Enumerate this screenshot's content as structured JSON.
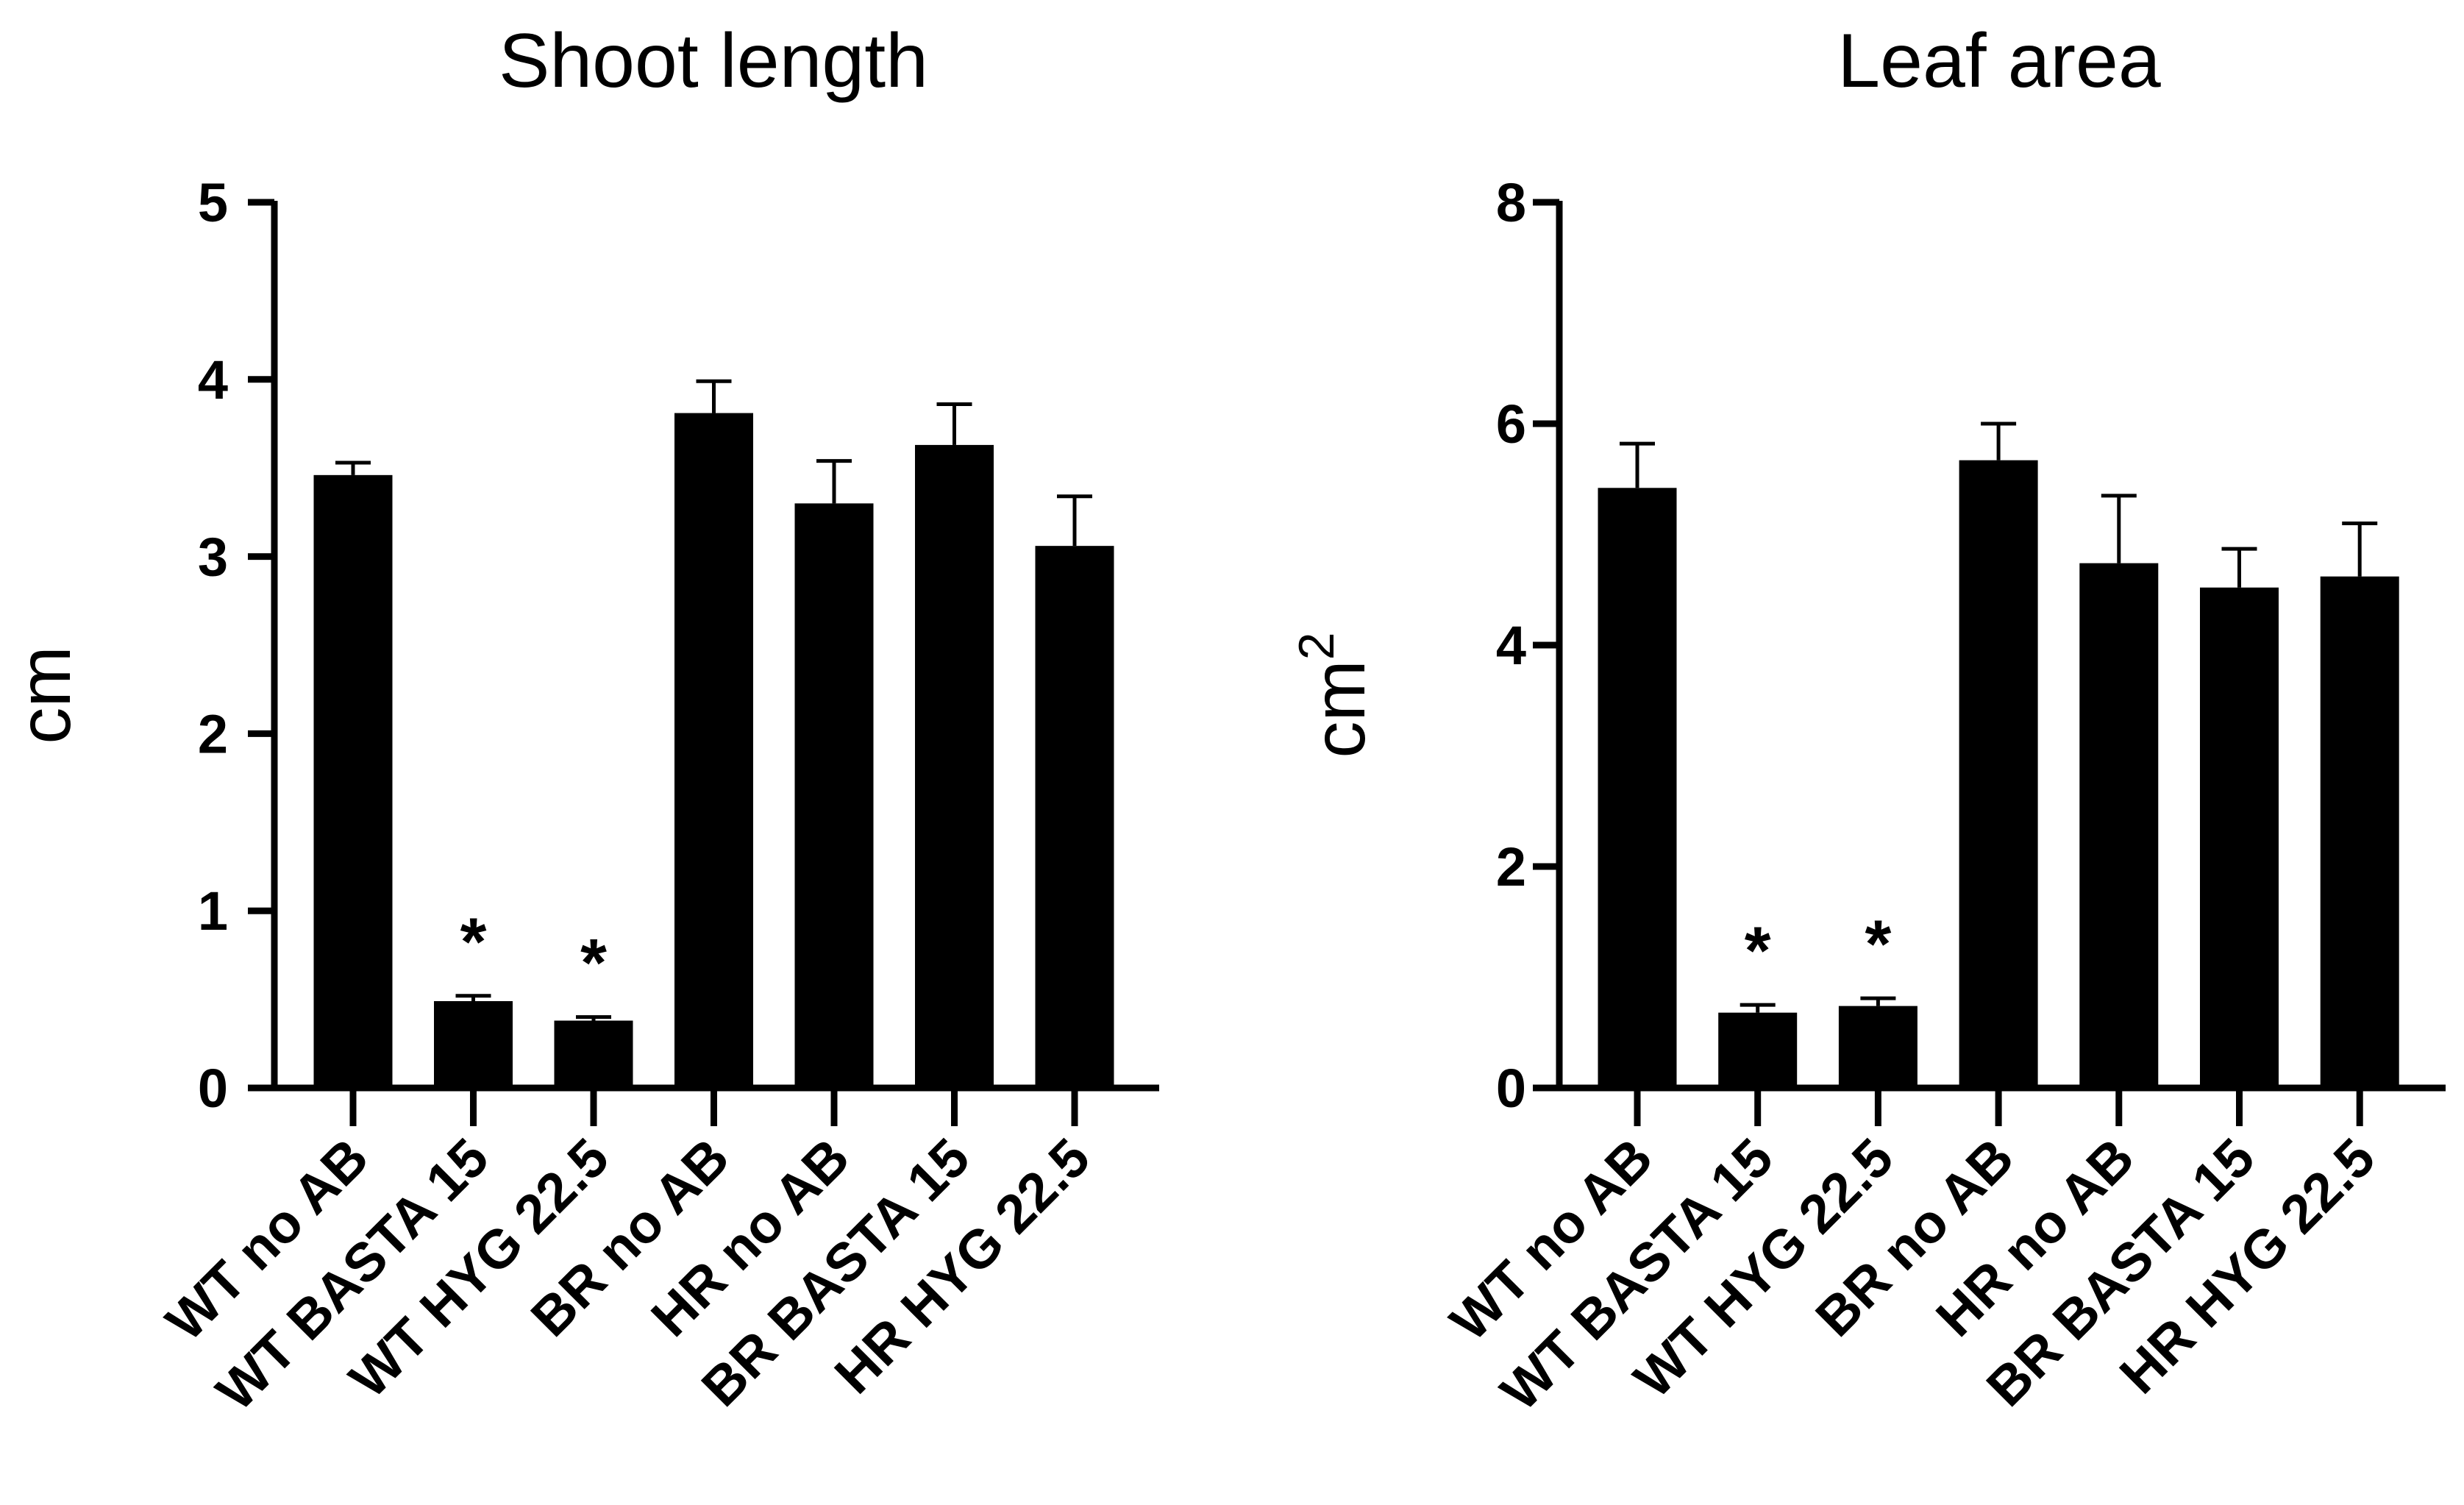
{
  "chart_data": [
    {
      "type": "bar",
      "title": "Shoot length",
      "xlabel": "",
      "ylabel": "cm",
      "ylabel_superscript": "",
      "ylim": [
        0,
        5
      ],
      "yticks": [
        0,
        1,
        2,
        3,
        4,
        5
      ],
      "grid": false,
      "legend": "none",
      "categories": [
        "WT no AB",
        "WT BASTA 15",
        "WT HYG 22.5",
        "BR no AB",
        "HR no AB",
        "BR BASTA 15",
        "HR HYG 22.5"
      ],
      "values": [
        3.46,
        0.49,
        0.38,
        3.81,
        3.3,
        3.63,
        3.06
      ],
      "errors": [
        0.07,
        0.03,
        0.02,
        0.18,
        0.24,
        0.23,
        0.28
      ],
      "annotations": [
        "",
        "*",
        "*",
        "",
        "",
        "",
        ""
      ],
      "bar_color": "#000000"
    },
    {
      "type": "bar",
      "title": "Leaf area",
      "xlabel": "",
      "ylabel": "cm",
      "ylabel_superscript": "2",
      "ylim": [
        0,
        8
      ],
      "yticks": [
        0,
        2,
        4,
        6,
        8
      ],
      "grid": false,
      "legend": "none",
      "categories": [
        "WT no AB",
        "WT BASTA 15",
        "WT HYG 22.5",
        "BR no AB",
        "HR no AB",
        "BR BASTA 15",
        "HR HYG 22.5"
      ],
      "values": [
        5.42,
        0.68,
        0.74,
        5.67,
        4.74,
        4.52,
        4.62
      ],
      "errors": [
        0.4,
        0.07,
        0.07,
        0.33,
        0.61,
        0.35,
        0.48
      ],
      "annotations": [
        "",
        "*",
        "*",
        "",
        "",
        "",
        ""
      ],
      "bar_color": "#000000"
    }
  ]
}
